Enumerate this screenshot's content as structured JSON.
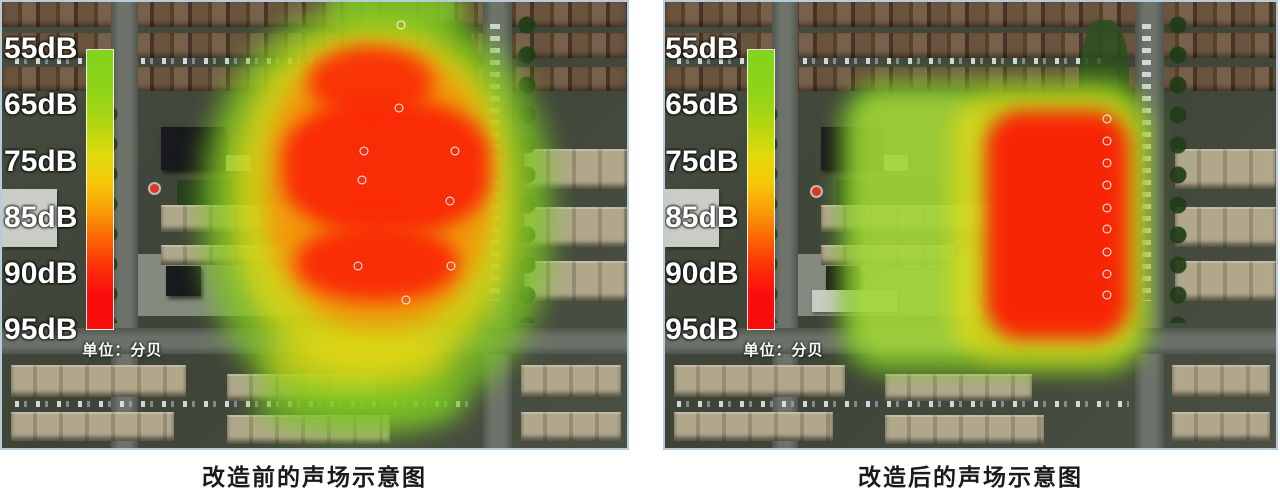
{
  "figure": {
    "type": "sound-field heatmap comparison over satellite imagery",
    "unit_note": "单位：分贝"
  },
  "panels": [
    {
      "id": "before",
      "caption": "改造前的声场示意图",
      "legend_ticks": [
        "55dB",
        "65dB",
        "75dB",
        "85dB",
        "90dB",
        "95dB"
      ],
      "legend_unit": "单位：分贝",
      "measurement_points": [
        [
          63.8,
          5.1
        ],
        [
          63.5,
          23.7
        ],
        [
          57.9,
          33.4
        ],
        [
          72.4,
          33.4
        ],
        [
          57.6,
          40.0
        ],
        [
          71.6,
          44.7
        ],
        [
          56.9,
          59.3
        ],
        [
          71.9,
          59.3
        ],
        [
          64.6,
          66.8
        ]
      ]
    },
    {
      "id": "after",
      "caption": "改造后的声场示意图",
      "legend_ticks": [
        "55dB",
        "65dB",
        "75dB",
        "85dB",
        "90dB",
        "95dB"
      ],
      "legend_unit": "单位：分贝",
      "measurement_points": [
        [
          72.4,
          26.3
        ],
        [
          72.4,
          31.2
        ],
        [
          72.4,
          36.2
        ],
        [
          72.4,
          41.1
        ],
        [
          72.4,
          46.1
        ],
        [
          72.4,
          51.0
        ],
        [
          72.4,
          56.0
        ],
        [
          72.4,
          60.9
        ],
        [
          72.4,
          65.8
        ]
      ]
    }
  ],
  "colors": {
    "legend_green": "#80d51b",
    "legend_yellow": "#e2da0b",
    "legend_orange": "#fa9a06",
    "legend_red": "#fa0d0d",
    "panel_border": "#b7cbd8",
    "caption_text": "#1a1a1a"
  }
}
